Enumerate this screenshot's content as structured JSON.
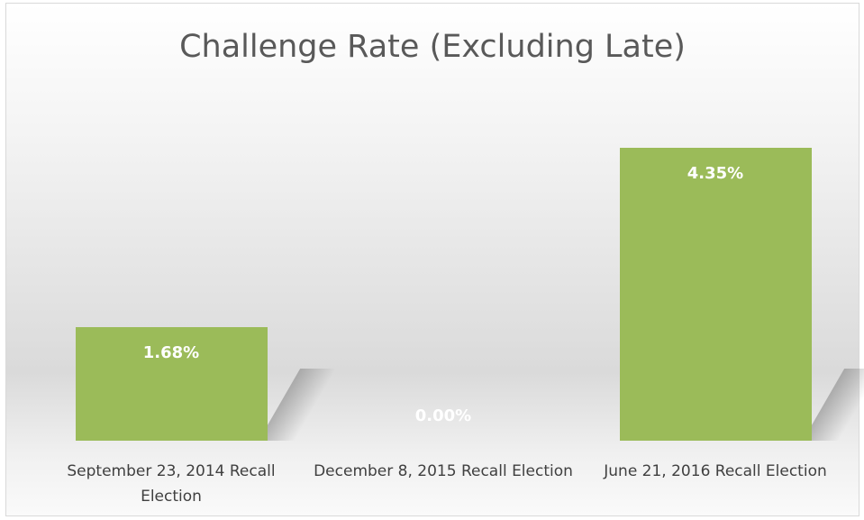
{
  "chart_data": {
    "type": "bar",
    "title": "Challenge Rate (Excluding Late)",
    "categories": [
      "September 23, 2014 Recall Election",
      "December 8, 2015 Recall Election",
      "June 21, 2016 Recall Election"
    ],
    "values": [
      1.68,
      0,
      4.35
    ],
    "value_labels": [
      "1.68%",
      "0.00%",
      "4.35%"
    ],
    "color": "#9bbb59"
  }
}
